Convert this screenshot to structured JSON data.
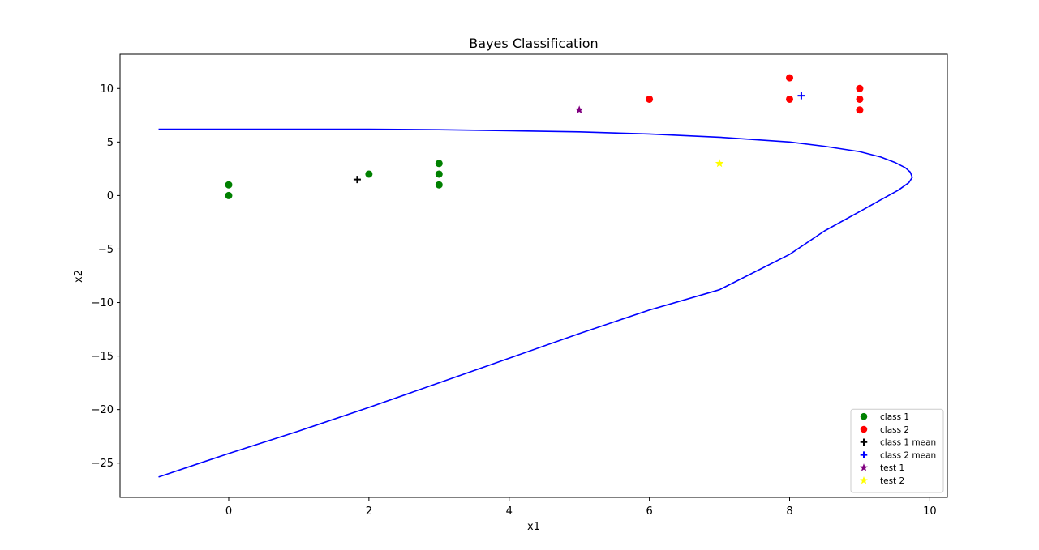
{
  "chart_data": {
    "type": "scatter",
    "title": "Bayes Classification",
    "xlabel": "x1",
    "ylabel": "x2",
    "xlim": [
      -1.55,
      10.25
    ],
    "ylim": [
      -28.2,
      13.2
    ],
    "xticks": [
      0,
      2,
      4,
      6,
      8,
      10
    ],
    "yticks": [
      10,
      5,
      0,
      -5,
      -10,
      -15,
      -20,
      -25
    ],
    "grid": false,
    "legend_position": "lower-right",
    "series": [
      {
        "name": "class 1",
        "marker": "circle",
        "color": "#008000",
        "points": [
          [
            0,
            0
          ],
          [
            0,
            1
          ],
          [
            2,
            2
          ],
          [
            3,
            1
          ],
          [
            3,
            2
          ],
          [
            3,
            3
          ]
        ]
      },
      {
        "name": "class 2",
        "marker": "circle",
        "color": "#ff0000",
        "points": [
          [
            6,
            9
          ],
          [
            8,
            9
          ],
          [
            8,
            11
          ],
          [
            9,
            8
          ],
          [
            9,
            9
          ],
          [
            9,
            10
          ]
        ]
      },
      {
        "name": "class 1 mean",
        "marker": "plus",
        "color": "#000000",
        "points": [
          [
            1.833,
            1.5
          ]
        ]
      },
      {
        "name": "class 2 mean",
        "marker": "plus",
        "color": "#0000ff",
        "points": [
          [
            8.167,
            9.333
          ]
        ]
      },
      {
        "name": "test 1",
        "marker": "star",
        "color": "#800080",
        "points": [
          [
            5,
            8
          ]
        ]
      },
      {
        "name": "test 2",
        "marker": "star",
        "color": "#ffff00",
        "points": [
          [
            7,
            3
          ]
        ]
      }
    ],
    "decision_boundary": {
      "color": "#0000ff",
      "points": [
        [
          -1,
          6.2
        ],
        [
          0,
          6.2
        ],
        [
          1,
          6.2
        ],
        [
          2,
          6.2
        ],
        [
          3,
          6.15
        ],
        [
          4,
          6.05
        ],
        [
          5,
          5.95
        ],
        [
          6,
          5.75
        ],
        [
          7,
          5.45
        ],
        [
          8,
          5.0
        ],
        [
          8.5,
          4.6
        ],
        [
          9,
          4.1
        ],
        [
          9.3,
          3.6
        ],
        [
          9.5,
          3.1
        ],
        [
          9.65,
          2.6
        ],
        [
          9.72,
          2.2
        ],
        [
          9.75,
          1.7
        ],
        [
          9.7,
          1.2
        ],
        [
          9.55,
          0.5
        ],
        [
          9.3,
          -0.4
        ],
        [
          9,
          -1.5
        ],
        [
          8.5,
          -3.3
        ],
        [
          8,
          -5.5
        ],
        [
          7,
          -8.8
        ],
        [
          6,
          -10.7
        ],
        [
          5,
          -12.9
        ],
        [
          4,
          -15.2
        ],
        [
          3,
          -17.5
        ],
        [
          2,
          -19.8
        ],
        [
          1,
          -22.0
        ],
        [
          0,
          -24.1
        ],
        [
          -1,
          -26.3
        ]
      ]
    }
  }
}
